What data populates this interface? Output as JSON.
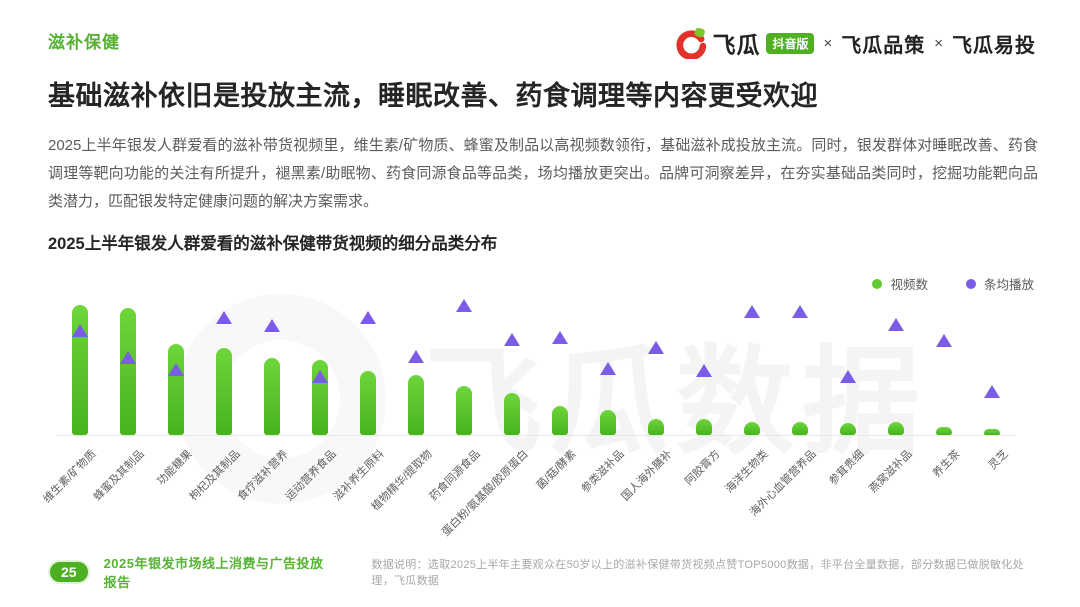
{
  "page": {
    "section_label": "滋补保健",
    "title": "基础滋补依旧是投放主流，睡眠改善、药食调理等内容更受欢迎",
    "body": "2025上半年银发人群爱看的滋补带货视频里，维生素/矿物质、蜂蜜及制品以高视频数领衔，基础滋补成投放主流。同时，银发群体对睡眠改善、药食调理等靶向功能的关注有所提升，褪黑素/助眠物、药食同源食品等品类，场均播放更突出。品牌可洞察差异，在夯实基础品类同时，挖掘功能靶向品类潜力，匹配银发特定健康问题的解决方案需求。"
  },
  "logo": {
    "brand": "飞瓜",
    "badge": "抖音版",
    "sep1": "×",
    "partner1": "飞瓜品策",
    "sep2": "×",
    "partner2": "飞瓜易投"
  },
  "chart": {
    "title": "2025上半年银发人群爱看的滋补保健带货视频的细分品类分布",
    "legend": [
      {
        "label": "视频数",
        "color": "#5fcb2e"
      },
      {
        "label": "条均播放",
        "color": "#7b5ce6"
      }
    ]
  },
  "chart_data": {
    "type": "bar",
    "title": "2025上半年银发人群爱看的滋补保健带货视频的细分品类分布",
    "categories": [
      "维生素/矿物质",
      "蜂蜜及其制品",
      "功能糖果",
      "枸杞及其制品",
      "食疗滋补营养",
      "运动营养食品",
      "滋补养生原料",
      "植物精华/提取物",
      "药食同源食品",
      "蛋白粉/氨基酸/胶原蛋白",
      "菌/菇/酵素",
      "参类滋补品",
      "国人海外膳补",
      "阿胶膏方",
      "海洋生物类",
      "海外心血管营养品",
      "参茸贵细",
      "燕窝滋补品",
      "养生茶",
      "灵芝"
    ],
    "series": [
      {
        "name": "视频数",
        "marker": "bar",
        "color": "#52c41a",
        "values_relative": [
          100,
          98,
          70,
          67,
          59,
          58,
          49,
          46,
          38,
          32,
          22,
          19,
          12,
          12,
          10,
          10,
          9,
          10,
          6,
          5
        ]
      },
      {
        "name": "条均播放",
        "marker": "triangle",
        "color": "#7b5ce6",
        "values_relative": [
          80,
          59,
          50,
          90,
          84,
          45,
          90,
          60,
          99,
          73,
          75,
          51,
          67,
          49,
          95,
          95,
          45,
          85,
          72,
          33
        ]
      }
    ],
    "xlabel": "",
    "ylabel": "",
    "y_axis_visible": false,
    "note": "源图未标注数值轴，values_relative 为按像素估读的相对值（0-100）",
    "legend_position": "top-right",
    "grid": false
  },
  "watermark": "飞瓜数据",
  "footer": {
    "page_number": "25",
    "report_title": "2025年银发市场线上消费与广告投放报告",
    "note": "数据说明：选取2025上半年主要观众在50岁以上的滋补保健带货视频点赞TOP5000数据，非平台全量数据，部分数据已做脱敏化处理，飞瓜数据"
  }
}
